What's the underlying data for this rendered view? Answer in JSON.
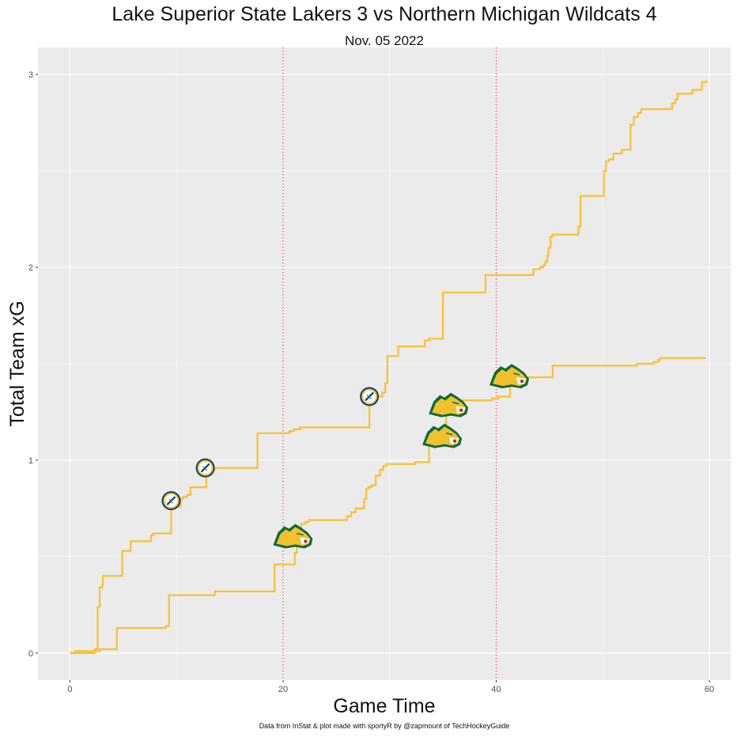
{
  "chart_data": {
    "type": "line",
    "title": "Lake Superior State Lakers 3 vs Northern Michigan Wildcats 4",
    "subtitle": "Nov. 05 2022",
    "xlabel": "Game Time",
    "ylabel": "Total Team xG",
    "caption": "Data from InStat & plot made with sportyR by @zapmount of TechHockeyGuide",
    "xlim": [
      -3,
      62
    ],
    "ylim": [
      -0.14,
      3.14
    ],
    "x_ticks": [
      0,
      20,
      40,
      60
    ],
    "x_tick_labels": [
      "0",
      "20",
      "40",
      "60"
    ],
    "y_ticks": [
      0,
      1,
      2,
      3
    ],
    "y_tick_labels": [
      "0",
      "1",
      "2",
      "3"
    ],
    "period_lines": [
      20,
      40
    ],
    "grid": true,
    "line_color": "#FBC02D",
    "period_line_color": "#E53935",
    "series": [
      {
        "team": "Lake Superior State Lakers",
        "points": [
          [
            0,
            0
          ],
          [
            0.4,
            0.0
          ],
          [
            0.5,
            0.01
          ],
          [
            2.0,
            0.01
          ],
          [
            2.3,
            0.02
          ],
          [
            2.6,
            0.02
          ],
          [
            2.6,
            0.24
          ],
          [
            2.8,
            0.34
          ],
          [
            3.0,
            0.35
          ],
          [
            3.1,
            0.4
          ],
          [
            4.9,
            0.4
          ],
          [
            4.9,
            0.53
          ],
          [
            5.6,
            0.53
          ],
          [
            5.7,
            0.58
          ],
          [
            7.5,
            0.58
          ],
          [
            7.6,
            0.61
          ],
          [
            7.8,
            0.62
          ],
          [
            9.5,
            0.62
          ],
          [
            9.5,
            0.76
          ],
          [
            10.3,
            0.76
          ],
          [
            10.4,
            0.8
          ],
          [
            10.6,
            0.81
          ],
          [
            11.0,
            0.82
          ],
          [
            11.3,
            0.82
          ],
          [
            11.3,
            0.86
          ],
          [
            12.7,
            0.86
          ],
          [
            12.8,
            0.93
          ],
          [
            13.0,
            0.93
          ],
          [
            13.3,
            0.95
          ],
          [
            13.6,
            0.96
          ],
          [
            17.5,
            0.96
          ],
          [
            17.6,
            1.14
          ],
          [
            20.5,
            1.14
          ],
          [
            20.6,
            1.15
          ],
          [
            21.0,
            1.16
          ],
          [
            21.6,
            1.16
          ],
          [
            21.6,
            1.17
          ],
          [
            28.1,
            1.17
          ],
          [
            28.1,
            1.33
          ],
          [
            29.1,
            1.33
          ],
          [
            29.3,
            1.35
          ],
          [
            29.6,
            1.4
          ],
          [
            29.8,
            1.54
          ],
          [
            30.8,
            1.54
          ],
          [
            30.8,
            1.59
          ],
          [
            33.2,
            1.59
          ],
          [
            33.3,
            1.62
          ],
          [
            33.7,
            1.63
          ],
          [
            35.0,
            1.63
          ],
          [
            35.0,
            1.87
          ],
          [
            39.0,
            1.87
          ],
          [
            39.0,
            1.96
          ],
          [
            43.4,
            1.96
          ],
          [
            43.5,
            1.99
          ],
          [
            43.9,
            1.99
          ],
          [
            44.1,
            2.0
          ],
          [
            44.4,
            2.01
          ],
          [
            44.6,
            2.03
          ],
          [
            44.8,
            2.06
          ],
          [
            44.9,
            2.1
          ],
          [
            45.1,
            2.16
          ],
          [
            45.3,
            2.17
          ],
          [
            47.6,
            2.17
          ],
          [
            47.7,
            2.21
          ],
          [
            47.9,
            2.37
          ],
          [
            50.0,
            2.37
          ],
          [
            50.1,
            2.5
          ],
          [
            50.3,
            2.55
          ],
          [
            50.6,
            2.56
          ],
          [
            51.0,
            2.59
          ],
          [
            51.8,
            2.59
          ],
          [
            51.8,
            2.61
          ],
          [
            52.5,
            2.61
          ],
          [
            52.6,
            2.74
          ],
          [
            52.9,
            2.78
          ],
          [
            53.1,
            2.78
          ],
          [
            53.3,
            2.8
          ],
          [
            53.6,
            2.82
          ],
          [
            56.3,
            2.82
          ],
          [
            56.5,
            2.85
          ],
          [
            56.8,
            2.87
          ],
          [
            57.0,
            2.9
          ],
          [
            58.2,
            2.9
          ],
          [
            58.4,
            2.92
          ],
          [
            59.1,
            2.92
          ],
          [
            59.3,
            2.96
          ],
          [
            59.7,
            2.97
          ]
        ]
      },
      {
        "team": "Northern Michigan Wildcats",
        "points": [
          [
            0,
            0
          ],
          [
            2.1,
            0.0
          ],
          [
            2.3,
            0.01
          ],
          [
            2.6,
            0.01
          ],
          [
            2.8,
            0.02
          ],
          [
            4.3,
            0.02
          ],
          [
            4.4,
            0.13
          ],
          [
            8.8,
            0.13
          ],
          [
            9.0,
            0.14
          ],
          [
            9.3,
            0.14
          ],
          [
            9.3,
            0.3
          ],
          [
            13.5,
            0.3
          ],
          [
            13.6,
            0.32
          ],
          [
            19.2,
            0.32
          ],
          [
            19.2,
            0.46
          ],
          [
            21.0,
            0.46
          ],
          [
            21.1,
            0.52
          ],
          [
            21.3,
            0.58
          ],
          [
            21.7,
            0.67
          ],
          [
            22.1,
            0.68
          ],
          [
            22.4,
            0.69
          ],
          [
            25.8,
            0.69
          ],
          [
            26.0,
            0.71
          ],
          [
            26.4,
            0.73
          ],
          [
            26.8,
            0.75
          ],
          [
            27.5,
            0.75
          ],
          [
            27.6,
            0.8
          ],
          [
            27.8,
            0.85
          ],
          [
            28.0,
            0.86
          ],
          [
            28.3,
            0.87
          ],
          [
            28.7,
            0.92
          ],
          [
            29.1,
            0.95
          ],
          [
            29.4,
            0.97
          ],
          [
            29.7,
            0.98
          ],
          [
            32.4,
            0.98
          ],
          [
            32.4,
            0.99
          ],
          [
            33.7,
            0.99
          ],
          [
            33.7,
            1.12
          ],
          [
            35.3,
            1.12
          ],
          [
            35.3,
            1.27
          ],
          [
            35.9,
            1.27
          ],
          [
            36.1,
            1.31
          ],
          [
            39.5,
            1.31
          ],
          [
            39.6,
            1.32
          ],
          [
            40.0,
            1.32
          ],
          [
            40.2,
            1.33
          ],
          [
            41.3,
            1.33
          ],
          [
            41.3,
            1.43
          ],
          [
            45.2,
            1.43
          ],
          [
            45.3,
            1.49
          ],
          [
            53.0,
            1.49
          ],
          [
            53.2,
            1.5
          ],
          [
            54.6,
            1.5
          ],
          [
            54.8,
            1.51
          ],
          [
            55.2,
            1.52
          ],
          [
            55.4,
            1.53
          ],
          [
            59.7,
            1.53
          ]
        ]
      }
    ],
    "goals": [
      {
        "team": "Lake Superior State Lakers",
        "x": 9.5,
        "y": 0.79
      },
      {
        "team": "Lake Superior State Lakers",
        "x": 12.7,
        "y": 0.96
      },
      {
        "team": "Lake Superior State Lakers",
        "x": 28.1,
        "y": 1.33
      },
      {
        "team": "Northern Michigan Wildcats",
        "x": 21.0,
        "y": 0.6
      },
      {
        "team": "Northern Michigan Wildcats",
        "x": 35.0,
        "y": 1.12
      },
      {
        "team": "Northern Michigan Wildcats",
        "x": 35.6,
        "y": 1.28
      },
      {
        "team": "Northern Michigan Wildcats",
        "x": 41.3,
        "y": 1.43
      }
    ],
    "goal_icons": {
      "Lake Superior State Lakers": "lakers-logo-icon",
      "Northern Michigan Wildcats": "wildcats-logo-icon"
    }
  }
}
